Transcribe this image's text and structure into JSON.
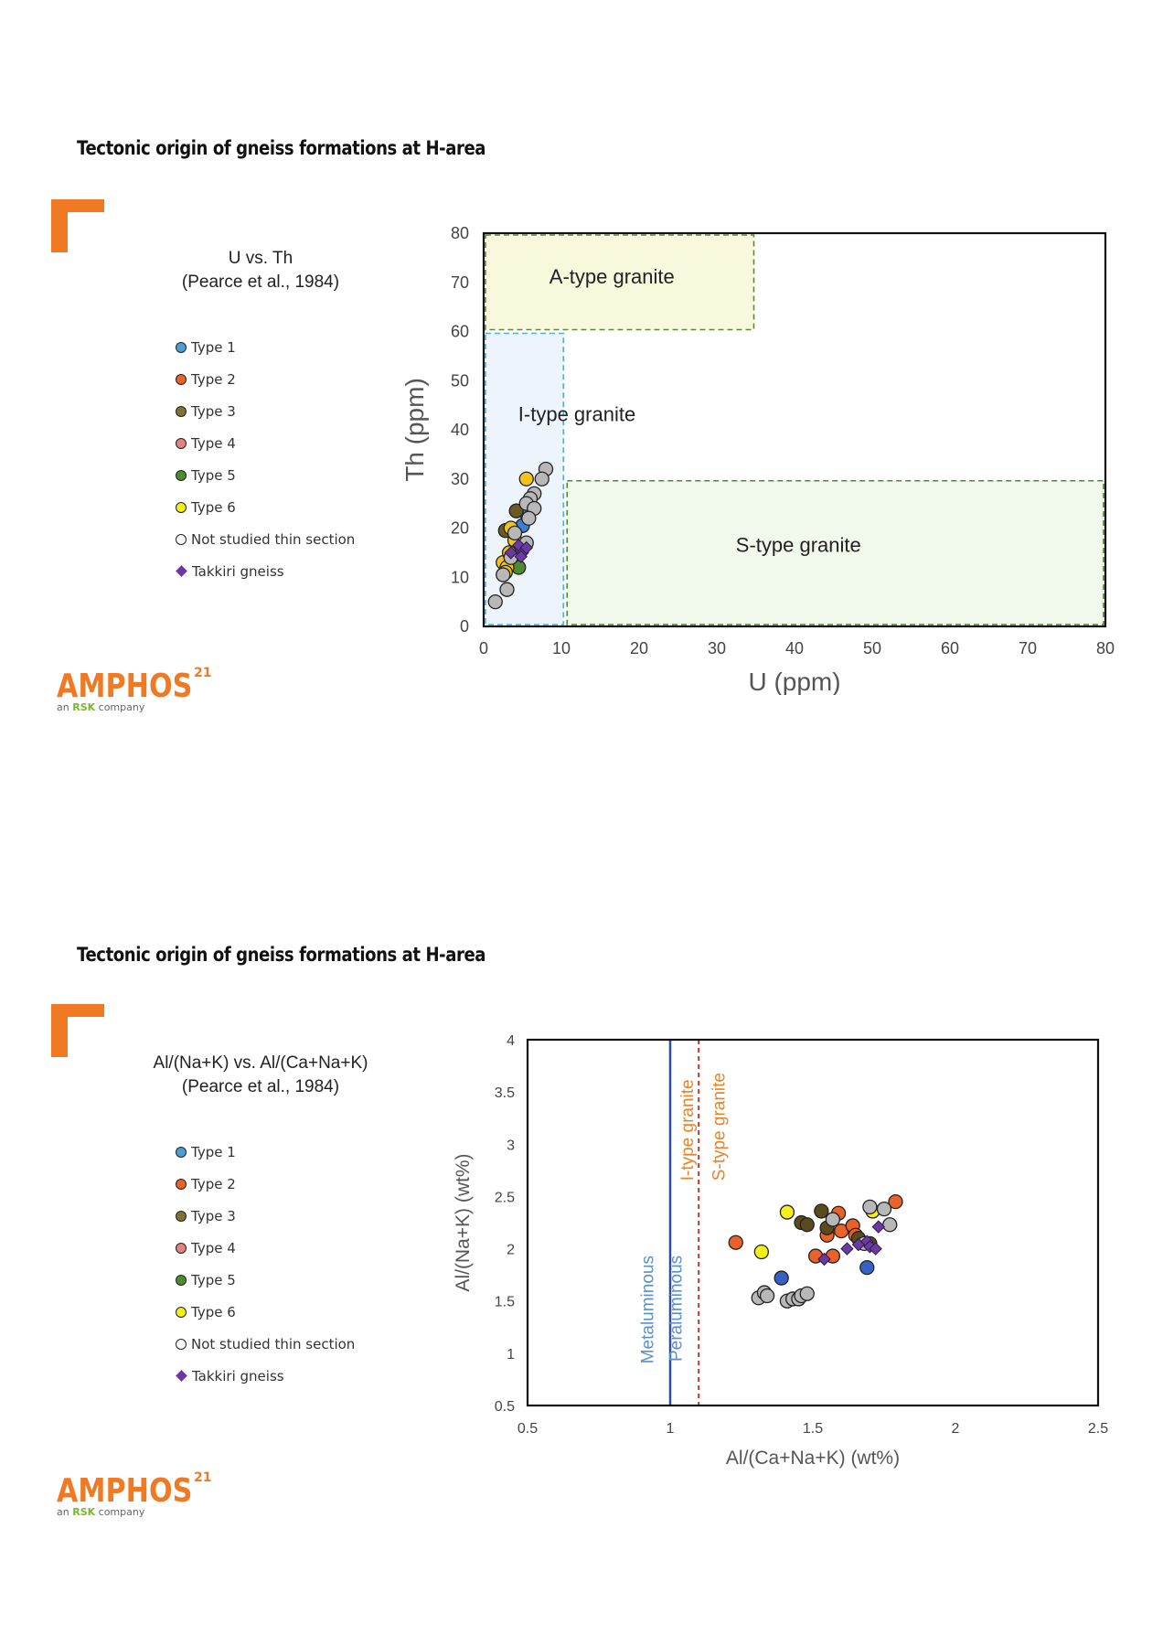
{
  "slides": [
    {
      "title": "Tectonic origin of gneiss formations at H-area",
      "chart_title": [
        "U vs. Th",
        "(Pearce et al., 1984)"
      ]
    },
    {
      "title": "Tectonic origin of gneiss formations at H-area",
      "chart_title": [
        "Al/(Na+K) vs. Al/(Ca+Na+K)",
        "(Pearce et al., 1984)"
      ]
    }
  ],
  "legend": [
    {
      "label": "Type 1",
      "color": "#4a9fd6",
      "marker": "circle"
    },
    {
      "label": "Type 2",
      "color": "#e8622a",
      "marker": "circle"
    },
    {
      "label": "Type 3",
      "color": "#7c7632",
      "marker": "circle"
    },
    {
      "label": "Type 4",
      "color": "#e0857e",
      "marker": "circle"
    },
    {
      "label": "Type 5",
      "color": "#4f8a2e",
      "marker": "circle"
    },
    {
      "label": "Type 6",
      "color": "#f2ef1a",
      "marker": "circle"
    },
    {
      "label": "Not studied thin section",
      "color": "#ffffff",
      "marker": "circle"
    },
    {
      "label": "Takkiri gneiss",
      "color": "#6a3aa0",
      "marker": "diamond"
    }
  ],
  "logo": {
    "name": "AMPHOS",
    "superscript": "21",
    "tagline_prefix": "an",
    "tagline_brand": "RSK",
    "tagline_suffix": "company"
  },
  "chart_data": [
    {
      "type": "scatter",
      "xlabel": "U (ppm)",
      "ylabel": "Th (ppm)",
      "xlim": [
        0,
        80
      ],
      "ylim": [
        0,
        80
      ],
      "xticks": [
        0,
        10,
        20,
        30,
        40,
        50,
        60,
        70,
        80
      ],
      "yticks": [
        0,
        10,
        20,
        30,
        40,
        50,
        60,
        70,
        80
      ],
      "regions": [
        {
          "label": "A-type granite",
          "x": [
            0,
            35
          ],
          "y": [
            60,
            80
          ],
          "fill": "#f8f8dc",
          "stroke": "#5f8a3a"
        },
        {
          "label": "I-type granite",
          "x": [
            0,
            10.5
          ],
          "y": [
            0,
            60
          ],
          "fill": "#eef4fb",
          "stroke": "#4faee0"
        },
        {
          "label": "S-type granite",
          "x": [
            10.5,
            80
          ],
          "y": [
            0,
            30
          ],
          "fill": "#f1f8ec",
          "stroke": "#4f8a2e"
        }
      ],
      "series": [
        {
          "name": "Type 1",
          "color": "#3e7fd1",
          "marker": "circle",
          "points": [
            [
              5,
              20.5
            ],
            [
              4.2,
              16
            ],
            [
              5.5,
              23
            ]
          ]
        },
        {
          "name": "Type 2",
          "color": "#e8622a",
          "marker": "circle",
          "points": []
        },
        {
          "name": "Type 3",
          "color": "#6b5a26",
          "marker": "circle",
          "points": [
            [
              2.8,
              19.5
            ],
            [
              4.2,
              23.5
            ],
            [
              3.8,
              13
            ]
          ]
        },
        {
          "name": "Type 5",
          "color": "#4f8a2e",
          "marker": "circle",
          "points": [
            [
              4.5,
              12
            ]
          ]
        },
        {
          "name": "Type 6",
          "color": "#f0c419",
          "marker": "circle",
          "points": [
            [
              5.5,
              30
            ],
            [
              3.5,
              20
            ],
            [
              2.5,
              13
            ],
            [
              3,
              12
            ],
            [
              4,
              17.5
            ],
            [
              2.8,
              11
            ],
            [
              3.3,
              15
            ]
          ]
        },
        {
          "name": "Not studied thin section",
          "color": "#b8b8b8",
          "marker": "circle",
          "points": [
            [
              1.5,
              5
            ],
            [
              3,
              7.5
            ],
            [
              8,
              32
            ],
            [
              7.5,
              30
            ],
            [
              6.5,
              27
            ],
            [
              6,
              26
            ],
            [
              5.5,
              25
            ],
            [
              6.5,
              24
            ],
            [
              5.8,
              22
            ],
            [
              5.5,
              17
            ],
            [
              4,
              19
            ],
            [
              3.5,
              14
            ],
            [
              2.5,
              10.5
            ]
          ]
        },
        {
          "name": "Takkiri gneiss",
          "color": "#6a3aa0",
          "marker": "diamond",
          "points": [
            [
              3.5,
              15
            ],
            [
              4.5,
              16.5
            ],
            [
              5,
              15
            ],
            [
              4.8,
              14.2
            ],
            [
              5.5,
              16
            ]
          ]
        }
      ]
    },
    {
      "type": "scatter",
      "xlabel": "Al/(Ca+Na+K) (wt%)",
      "ylabel": "Al/(Na+K) (wt%)",
      "xlim": [
        0.5,
        2.5
      ],
      "ylim": [
        0.5,
        4
      ],
      "xticks": [
        0.5,
        1,
        1.5,
        2,
        2.5
      ],
      "yticks": [
        0.5,
        1,
        1.5,
        2,
        2.5,
        3,
        3.5,
        4
      ],
      "vlines": [
        {
          "x": 1.0,
          "color": "#2b4fa3",
          "style": "solid"
        },
        {
          "x": 1.1,
          "color": "#c0392b",
          "style": "dashed"
        }
      ],
      "vlabels": [
        {
          "text": "Metaluminous",
          "color": "#5b8fd0"
        },
        {
          "text": "Peraluminous",
          "color": "#5b8fd0"
        },
        {
          "text": "I-type granite",
          "color": "#e8832a"
        },
        {
          "text": "S-type granite",
          "color": "#e8832a"
        }
      ],
      "series": [
        {
          "name": "Type 1",
          "color": "#3561c4",
          "marker": "circle",
          "points": [
            [
              1.39,
              1.72
            ],
            [
              1.69,
              1.82
            ]
          ]
        },
        {
          "name": "Type 2",
          "color": "#e8622a",
          "marker": "circle",
          "points": [
            [
              1.23,
              2.06
            ],
            [
              1.51,
              1.93
            ],
            [
              1.55,
              2.13
            ],
            [
              1.57,
              1.93
            ],
            [
              1.59,
              2.34
            ],
            [
              1.6,
              2.17
            ],
            [
              1.64,
              2.22
            ],
            [
              1.65,
              2.13
            ],
            [
              1.79,
              2.45
            ]
          ]
        },
        {
          "name": "Type 3",
          "color": "#5a4a1e",
          "marker": "circle",
          "points": [
            [
              1.46,
              2.25
            ],
            [
              1.48,
              2.23
            ],
            [
              1.53,
              2.36
            ],
            [
              1.55,
              2.2
            ],
            [
              1.66,
              2.1
            ],
            [
              1.7,
              2.05
            ]
          ]
        },
        {
          "name": "Type 6",
          "color": "#f2ef1a",
          "marker": "circle",
          "points": [
            [
              1.32,
              1.97
            ],
            [
              1.41,
              2.35
            ],
            [
              1.71,
              2.36
            ]
          ]
        },
        {
          "name": "Not studied thin section",
          "color": "#b8b8b8",
          "marker": "circle",
          "points": [
            [
              1.31,
              1.53
            ],
            [
              1.33,
              1.58
            ],
            [
              1.34,
              1.55
            ],
            [
              1.41,
              1.5
            ],
            [
              1.43,
              1.52
            ],
            [
              1.45,
              1.52
            ],
            [
              1.46,
              1.55
            ],
            [
              1.48,
              1.57
            ],
            [
              1.57,
              2.28
            ],
            [
              1.7,
              2.4
            ],
            [
              1.75,
              2.38
            ],
            [
              1.77,
              2.23
            ],
            [
              1.68,
              2.05
            ]
          ]
        },
        {
          "name": "Takkiri gneiss",
          "color": "#6a3aa0",
          "marker": "diamond",
          "points": [
            [
              1.54,
              1.9
            ],
            [
              1.62,
              2.0
            ],
            [
              1.66,
              2.04
            ],
            [
              1.69,
              2.07
            ],
            [
              1.7,
              2.02
            ],
            [
              1.72,
              2.0
            ],
            [
              1.73,
              2.21
            ]
          ]
        }
      ]
    }
  ]
}
